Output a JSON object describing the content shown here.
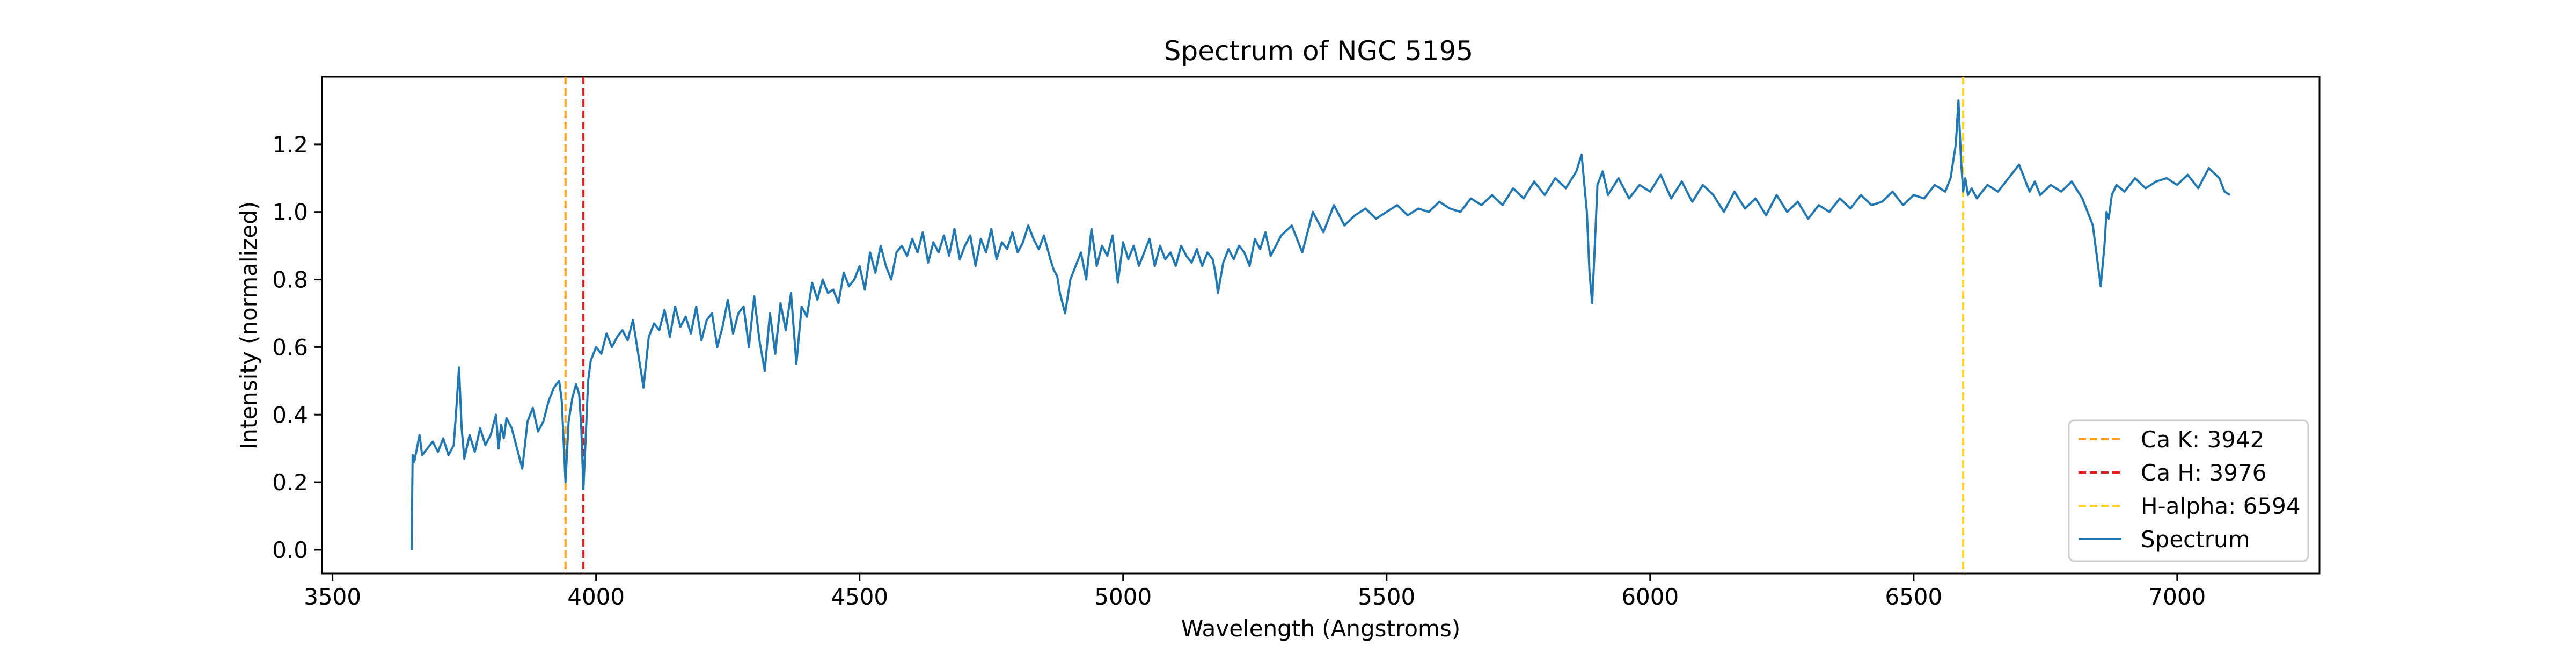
{
  "chart_data": {
    "type": "line",
    "title": "Spectrum of NGC 5195",
    "xlabel": "Wavelength (Angstroms)",
    "ylabel": "Intensity (normalized)",
    "xlim": [
      3480,
      7270
    ],
    "ylim": [
      -0.07,
      1.4
    ],
    "xticks": [
      3500,
      4000,
      4500,
      5000,
      5500,
      6000,
      6500,
      7000
    ],
    "yticks": [
      0.0,
      0.2,
      0.4,
      0.6,
      0.8,
      1.0,
      1.2
    ],
    "xtick_labels": [
      "3500",
      "4000",
      "4500",
      "5000",
      "5500",
      "6000",
      "6500",
      "7000"
    ],
    "ytick_labels": [
      "0.0",
      "0.2",
      "0.4",
      "0.6",
      "0.8",
      "1.0",
      "1.2"
    ],
    "grid": false,
    "legend_position": "lower-right",
    "series": [
      {
        "name": "Spectrum",
        "color": "#1f77b4",
        "x": [
          3650,
          3652,
          3655,
          3660,
          3665,
          3670,
          3680,
          3690,
          3700,
          3710,
          3720,
          3730,
          3735,
          3740,
          3745,
          3750,
          3760,
          3770,
          3780,
          3790,
          3800,
          3810,
          3815,
          3820,
          3825,
          3830,
          3840,
          3850,
          3860,
          3870,
          3880,
          3890,
          3900,
          3910,
          3920,
          3930,
          3935,
          3942,
          3948,
          3955,
          3962,
          3968,
          3972,
          3976,
          3980,
          3985,
          3990,
          4000,
          4010,
          4020,
          4030,
          4040,
          4050,
          4060,
          4070,
          4080,
          4090,
          4100,
          4110,
          4120,
          4130,
          4140,
          4150,
          4160,
          4170,
          4180,
          4190,
          4200,
          4210,
          4220,
          4230,
          4240,
          4250,
          4260,
          4270,
          4280,
          4290,
          4300,
          4310,
          4320,
          4330,
          4340,
          4350,
          4360,
          4370,
          4380,
          4390,
          4400,
          4410,
          4420,
          4430,
          4440,
          4450,
          4460,
          4470,
          4480,
          4490,
          4500,
          4510,
          4520,
          4530,
          4540,
          4550,
          4560,
          4570,
          4580,
          4590,
          4600,
          4610,
          4620,
          4630,
          4640,
          4650,
          4660,
          4670,
          4680,
          4690,
          4700,
          4710,
          4720,
          4730,
          4740,
          4750,
          4760,
          4770,
          4780,
          4790,
          4800,
          4810,
          4820,
          4830,
          4840,
          4850,
          4855,
          4862,
          4868,
          4875,
          4880,
          4890,
          4900,
          4910,
          4920,
          4930,
          4940,
          4950,
          4960,
          4970,
          4980,
          4990,
          5000,
          5010,
          5020,
          5030,
          5040,
          5050,
          5060,
          5070,
          5080,
          5090,
          5100,
          5110,
          5120,
          5130,
          5140,
          5150,
          5160,
          5170,
          5175,
          5180,
          5190,
          5200,
          5210,
          5220,
          5230,
          5240,
          5250,
          5260,
          5270,
          5280,
          5290,
          5300,
          5320,
          5340,
          5360,
          5380,
          5400,
          5420,
          5440,
          5460,
          5480,
          5500,
          5520,
          5540,
          5560,
          5580,
          5600,
          5620,
          5640,
          5660,
          5680,
          5700,
          5720,
          5740,
          5760,
          5780,
          5800,
          5820,
          5840,
          5860,
          5870,
          5880,
          5885,
          5890,
          5895,
          5900,
          5910,
          5920,
          5940,
          5960,
          5980,
          6000,
          6020,
          6040,
          6060,
          6080,
          6100,
          6120,
          6140,
          6160,
          6180,
          6200,
          6220,
          6240,
          6260,
          6280,
          6300,
          6320,
          6340,
          6360,
          6380,
          6400,
          6420,
          6440,
          6460,
          6480,
          6500,
          6520,
          6540,
          6560,
          6570,
          6580,
          6585,
          6590,
          6594,
          6598,
          6603,
          6610,
          6620,
          6640,
          6660,
          6680,
          6700,
          6720,
          6730,
          6740,
          6760,
          6780,
          6800,
          6820,
          6840,
          6855,
          6862,
          6866,
          6870,
          6876,
          6885,
          6900,
          6920,
          6940,
          6960,
          6980,
          7000,
          7020,
          7040,
          7060,
          7080,
          7090,
          7100
        ],
        "y": [
          0.0,
          0.28,
          0.26,
          0.3,
          0.34,
          0.28,
          0.3,
          0.32,
          0.29,
          0.33,
          0.28,
          0.31,
          0.42,
          0.54,
          0.36,
          0.27,
          0.34,
          0.29,
          0.36,
          0.31,
          0.34,
          0.4,
          0.3,
          0.37,
          0.33,
          0.39,
          0.36,
          0.3,
          0.24,
          0.38,
          0.42,
          0.35,
          0.38,
          0.44,
          0.48,
          0.5,
          0.44,
          0.2,
          0.38,
          0.45,
          0.49,
          0.46,
          0.36,
          0.18,
          0.32,
          0.5,
          0.56,
          0.6,
          0.58,
          0.64,
          0.6,
          0.63,
          0.65,
          0.62,
          0.68,
          0.58,
          0.48,
          0.63,
          0.67,
          0.65,
          0.71,
          0.63,
          0.72,
          0.66,
          0.69,
          0.64,
          0.72,
          0.62,
          0.68,
          0.7,
          0.6,
          0.66,
          0.74,
          0.64,
          0.7,
          0.72,
          0.6,
          0.75,
          0.62,
          0.53,
          0.7,
          0.58,
          0.73,
          0.65,
          0.76,
          0.55,
          0.72,
          0.69,
          0.79,
          0.74,
          0.8,
          0.76,
          0.77,
          0.73,
          0.82,
          0.78,
          0.8,
          0.84,
          0.77,
          0.88,
          0.82,
          0.9,
          0.84,
          0.8,
          0.88,
          0.9,
          0.87,
          0.92,
          0.88,
          0.94,
          0.85,
          0.91,
          0.88,
          0.93,
          0.87,
          0.95,
          0.86,
          0.9,
          0.93,
          0.84,
          0.92,
          0.88,
          0.95,
          0.86,
          0.91,
          0.89,
          0.94,
          0.88,
          0.91,
          0.96,
          0.92,
          0.89,
          0.93,
          0.9,
          0.86,
          0.83,
          0.81,
          0.76,
          0.7,
          0.8,
          0.84,
          0.88,
          0.8,
          0.95,
          0.84,
          0.9,
          0.87,
          0.93,
          0.79,
          0.91,
          0.86,
          0.9,
          0.84,
          0.88,
          0.92,
          0.84,
          0.9,
          0.86,
          0.88,
          0.84,
          0.9,
          0.87,
          0.85,
          0.89,
          0.84,
          0.88,
          0.86,
          0.82,
          0.76,
          0.85,
          0.89,
          0.86,
          0.9,
          0.88,
          0.84,
          0.92,
          0.89,
          0.94,
          0.87,
          0.9,
          0.93,
          0.96,
          0.88,
          1.0,
          0.94,
          1.02,
          0.96,
          0.99,
          1.01,
          0.98,
          1.0,
          1.02,
          0.99,
          1.01,
          1.0,
          1.03,
          1.01,
          1.0,
          1.04,
          1.02,
          1.05,
          1.02,
          1.07,
          1.04,
          1.09,
          1.05,
          1.1,
          1.07,
          1.12,
          1.17,
          1.0,
          0.82,
          0.73,
          0.9,
          1.08,
          1.12,
          1.05,
          1.1,
          1.04,
          1.08,
          1.06,
          1.11,
          1.04,
          1.09,
          1.03,
          1.08,
          1.05,
          1.0,
          1.06,
          1.01,
          1.04,
          0.99,
          1.05,
          1.0,
          1.03,
          0.98,
          1.02,
          1.0,
          1.04,
          1.01,
          1.05,
          1.02,
          1.03,
          1.06,
          1.02,
          1.05,
          1.04,
          1.08,
          1.06,
          1.1,
          1.2,
          1.33,
          1.15,
          1.06,
          1.1,
          1.05,
          1.07,
          1.04,
          1.08,
          1.06,
          1.1,
          1.14,
          1.06,
          1.09,
          1.05,
          1.08,
          1.06,
          1.09,
          1.04,
          0.96,
          0.78,
          0.9,
          1.0,
          0.98,
          1.05,
          1.08,
          1.06,
          1.1,
          1.07,
          1.09,
          1.1,
          1.08,
          1.11,
          1.07,
          1.13,
          1.1,
          1.06,
          1.05
        ]
      }
    ],
    "reference_lines": [
      {
        "name": "Ca K: 3942",
        "x": 3942,
        "color": "#ff9f1c"
      },
      {
        "name": "Ca H: 3976",
        "x": 3976,
        "color": "#e31a1c"
      },
      {
        "name": "H-alpha: 6594",
        "x": 6594,
        "color": "#ffd21f"
      }
    ]
  }
}
